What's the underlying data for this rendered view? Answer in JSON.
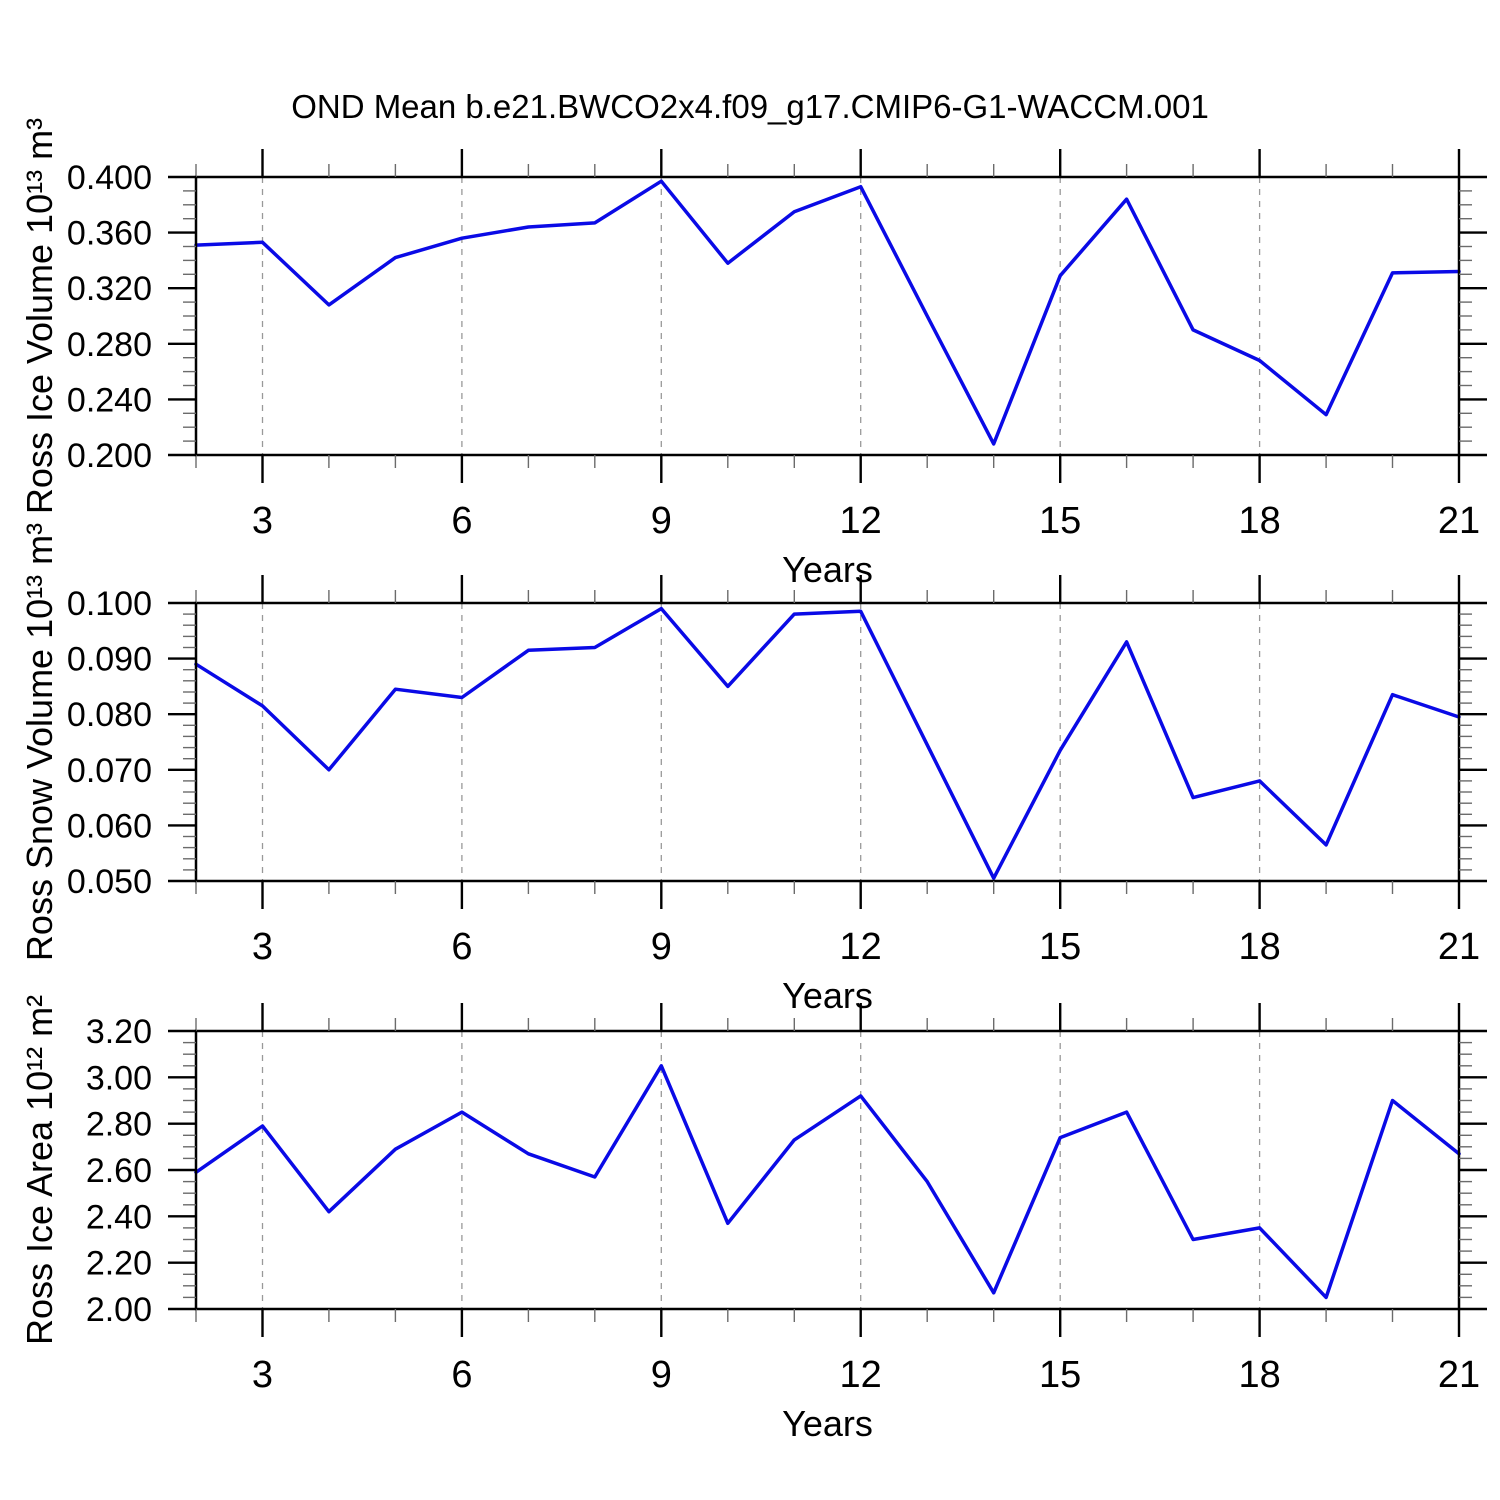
{
  "title": "OND Mean b.e21.BWCO2x4.f09_g17.CMIP6-G1-WACCM.001",
  "colors": {
    "line": "#0a0ae6",
    "grid": "#999999",
    "axis": "#000000"
  },
  "chart_data": [
    {
      "name": "ross-ice-volume",
      "type": "line",
      "ylabel": "Ross Ice Volume 10¹³ m³",
      "xlabel": "Years",
      "x": [
        2,
        3,
        4,
        5,
        6,
        7,
        8,
        9,
        10,
        11,
        12,
        13,
        14,
        15,
        16,
        17,
        18,
        19,
        20,
        21
      ],
      "values": [
        0.351,
        0.353,
        0.308,
        0.342,
        0.356,
        0.364,
        0.367,
        0.397,
        0.338,
        0.375,
        0.393,
        0.3,
        0.208,
        0.329,
        0.384,
        0.29,
        0.268,
        0.229,
        0.331,
        0.332
      ],
      "ylim": [
        0.2,
        0.4
      ],
      "ytick_major": 0.04,
      "ytick_minor": 0.01,
      "ytick_decimals": 3,
      "xlim": [
        2,
        21
      ],
      "xticks_major": [
        3,
        6,
        9,
        12,
        15,
        18,
        21
      ],
      "xtick_minor_step": 1,
      "xgridlines": [
        3,
        6,
        9,
        12,
        15,
        18
      ],
      "grid": true,
      "legend": "none"
    },
    {
      "name": "ross-snow-volume",
      "type": "line",
      "ylabel": "Ross Snow Volume 10¹³ m³",
      "xlabel": "Years",
      "x": [
        2,
        3,
        4,
        5,
        6,
        7,
        8,
        9,
        10,
        11,
        12,
        13,
        14,
        15,
        16,
        17,
        18,
        19,
        20,
        21
      ],
      "values": [
        0.089,
        0.0815,
        0.07,
        0.0845,
        0.083,
        0.0915,
        0.092,
        0.099,
        0.085,
        0.098,
        0.0985,
        0.0745,
        0.0505,
        0.0735,
        0.093,
        0.065,
        0.068,
        0.0565,
        0.0835,
        0.0795
      ],
      "ylim": [
        0.05,
        0.1
      ],
      "ytick_major": 0.01,
      "ytick_minor": 0.002,
      "ytick_decimals": 3,
      "xlim": [
        2,
        21
      ],
      "xticks_major": [
        3,
        6,
        9,
        12,
        15,
        18,
        21
      ],
      "xtick_minor_step": 1,
      "xgridlines": [
        3,
        6,
        9,
        12,
        15,
        18
      ],
      "grid": true,
      "legend": "none"
    },
    {
      "name": "ross-ice-area",
      "type": "line",
      "ylabel": "Ross Ice Area 10¹² m²",
      "xlabel": "Years",
      "x": [
        2,
        3,
        4,
        5,
        6,
        7,
        8,
        9,
        10,
        11,
        12,
        13,
        14,
        15,
        16,
        17,
        18,
        19,
        20,
        21
      ],
      "values": [
        2.59,
        2.79,
        2.42,
        2.69,
        2.85,
        2.67,
        2.57,
        3.05,
        2.37,
        2.73,
        2.92,
        2.55,
        2.07,
        2.74,
        2.85,
        2.3,
        2.35,
        2.05,
        2.9,
        2.67
      ],
      "ylim": [
        2.0,
        3.2
      ],
      "ytick_major": 0.2,
      "ytick_minor": 0.05,
      "ytick_decimals": 2,
      "xlim": [
        2,
        21
      ],
      "xticks_major": [
        3,
        6,
        9,
        12,
        15,
        18,
        21
      ],
      "xtick_minor_step": 1,
      "xgridlines": [
        3,
        6,
        9,
        12,
        15,
        18
      ],
      "grid": true,
      "legend": "none"
    }
  ]
}
